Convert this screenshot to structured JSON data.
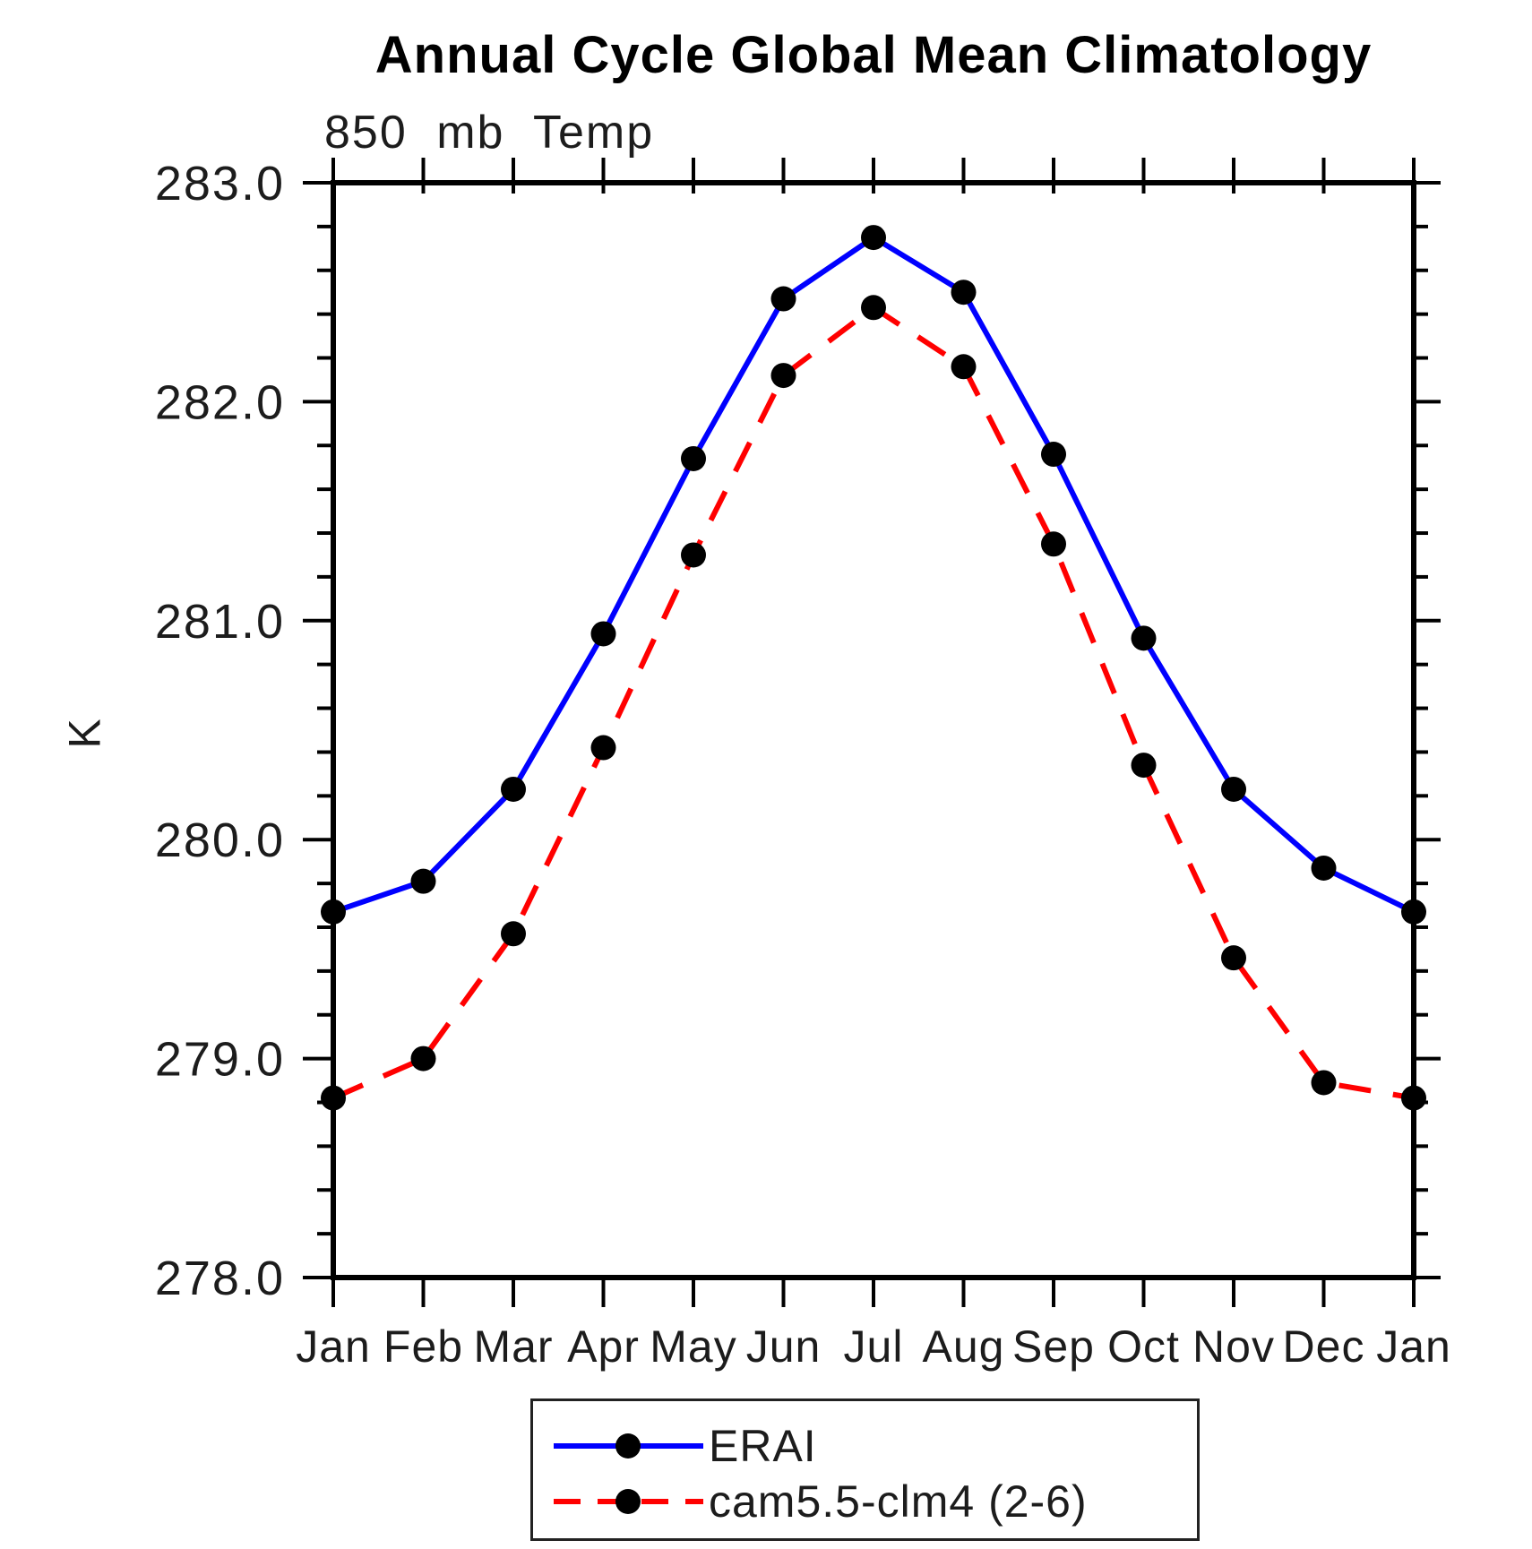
{
  "chart_data": {
    "type": "line",
    "title": "Annual Cycle Global Mean Climatology",
    "subtitle": "850 mb Temp",
    "ylabel": "K",
    "xlabel": "",
    "x_categories": [
      "Jan",
      "Feb",
      "Mar",
      "Apr",
      "May",
      "Jun",
      "Jul",
      "Aug",
      "Sep",
      "Oct",
      "Nov",
      "Dec",
      "Jan"
    ],
    "ylim": [
      278.0,
      283.0
    ],
    "ytick_major_interval": 1.0,
    "ytick_minor_interval": 0.2,
    "ytick_labels": [
      "278.0",
      "279.0",
      "280.0",
      "281.0",
      "282.0",
      "283.0"
    ],
    "grid": false,
    "legend_position": "bottom-center",
    "frame_color": "#000000",
    "marker_color": "#000000",
    "series": [
      {
        "name": "ERAI",
        "color": "#0000FF",
        "style": "solid",
        "marker": "circle",
        "values": [
          279.67,
          279.81,
          280.23,
          280.94,
          281.74,
          282.47,
          282.75,
          282.5,
          281.76,
          280.92,
          280.23,
          279.87,
          279.67
        ]
      },
      {
        "name": "cam5.5-clm4 (2-6)",
        "color": "#FF0000",
        "style": "dashed",
        "marker": "circle",
        "values": [
          278.82,
          279.0,
          279.57,
          280.42,
          281.3,
          282.12,
          282.43,
          282.16,
          281.35,
          280.34,
          279.46,
          278.89,
          278.82
        ]
      }
    ]
  }
}
